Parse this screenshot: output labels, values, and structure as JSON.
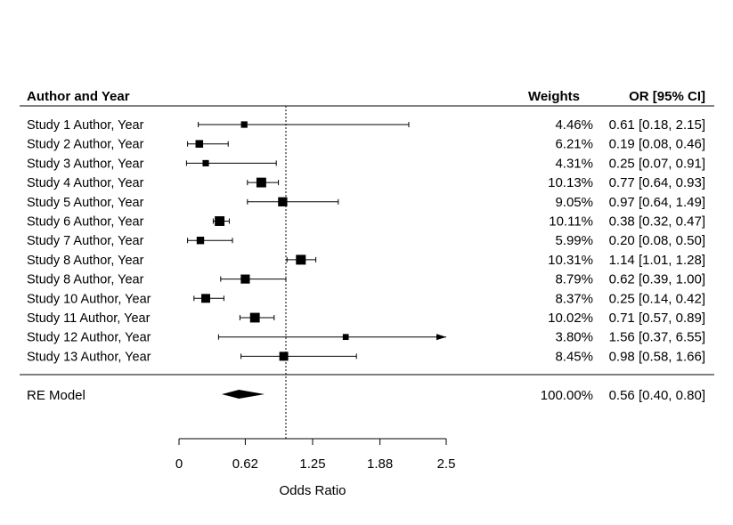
{
  "chart_data": {
    "type": "forest",
    "header": {
      "study_col": "Author and Year",
      "weights_col": "Weights",
      "or_col": "OR [95% CI]"
    },
    "rows": [
      {
        "label": "Study 1 Author, Year",
        "or": 0.61,
        "lo": 0.18,
        "hi": 2.15,
        "weight": "4.46%",
        "ci_text": "0.61 [0.18, 2.15]",
        "w": 4.46
      },
      {
        "label": "Study 2 Author, Year",
        "or": 0.19,
        "lo": 0.08,
        "hi": 0.46,
        "weight": "6.21%",
        "ci_text": "0.19 [0.08, 0.46]",
        "w": 6.21
      },
      {
        "label": "Study 3 Author, Year",
        "or": 0.25,
        "lo": 0.07,
        "hi": 0.91,
        "weight": "4.31%",
        "ci_text": "0.25 [0.07, 0.91]",
        "w": 4.31
      },
      {
        "label": "Study 4 Author, Year",
        "or": 0.77,
        "lo": 0.64,
        "hi": 0.93,
        "weight": "10.13%",
        "ci_text": "0.77 [0.64, 0.93]",
        "w": 10.13
      },
      {
        "label": "Study 5 Author, Year",
        "or": 0.97,
        "lo": 0.64,
        "hi": 1.49,
        "weight": "9.05%",
        "ci_text": "0.97 [0.64, 1.49]",
        "w": 9.05
      },
      {
        "label": "Study 6 Author, Year",
        "or": 0.38,
        "lo": 0.32,
        "hi": 0.47,
        "weight": "10.11%",
        "ci_text": "0.38 [0.32, 0.47]",
        "w": 10.11
      },
      {
        "label": "Study 7 Author, Year",
        "or": 0.2,
        "lo": 0.08,
        "hi": 0.5,
        "weight": "5.99%",
        "ci_text": "0.20 [0.08, 0.50]",
        "w": 5.99
      },
      {
        "label": "Study 8 Author, Year",
        "or": 1.14,
        "lo": 1.01,
        "hi": 1.28,
        "weight": "10.31%",
        "ci_text": "1.14 [1.01, 1.28]",
        "w": 10.31
      },
      {
        "label": "Study 8 Author, Year",
        "or": 0.62,
        "lo": 0.39,
        "hi": 1.0,
        "weight": "8.79%",
        "ci_text": "0.62 [0.39, 1.00]",
        "w": 8.79
      },
      {
        "label": "Study 10 Author, Year",
        "or": 0.25,
        "lo": 0.14,
        "hi": 0.42,
        "weight": "8.37%",
        "ci_text": "0.25 [0.14, 0.42]",
        "w": 8.37
      },
      {
        "label": "Study 11 Author, Year",
        "or": 0.71,
        "lo": 0.57,
        "hi": 0.89,
        "weight": "10.02%",
        "ci_text": "0.71 [0.57, 0.89]",
        "w": 10.02
      },
      {
        "label": "Study 12 Author, Year",
        "or": 1.56,
        "lo": 0.37,
        "hi": 6.55,
        "weight": "3.80%",
        "ci_text": "1.56 [0.37, 6.55]",
        "w": 3.8
      },
      {
        "label": "Study 13 Author, Year",
        "or": 0.98,
        "lo": 0.58,
        "hi": 1.66,
        "weight": "8.45%",
        "ci_text": "0.98 [0.58, 1.66]",
        "w": 8.45
      }
    ],
    "summary": {
      "label": "RE Model",
      "or": 0.56,
      "lo": 0.4,
      "hi": 0.8,
      "weight": "100.00%",
      "ci_text": "0.56 [0.40, 0.80]"
    },
    "xaxis": {
      "label": "Odds Ratio",
      "ticks": [
        0,
        0.62,
        1.25,
        1.88,
        2.5
      ],
      "tick_labels": [
        "0",
        "0.62",
        "1.25",
        "1.88",
        "2.5"
      ],
      "xlim": [
        0,
        2.5
      ]
    },
    "reference_line": 1
  }
}
